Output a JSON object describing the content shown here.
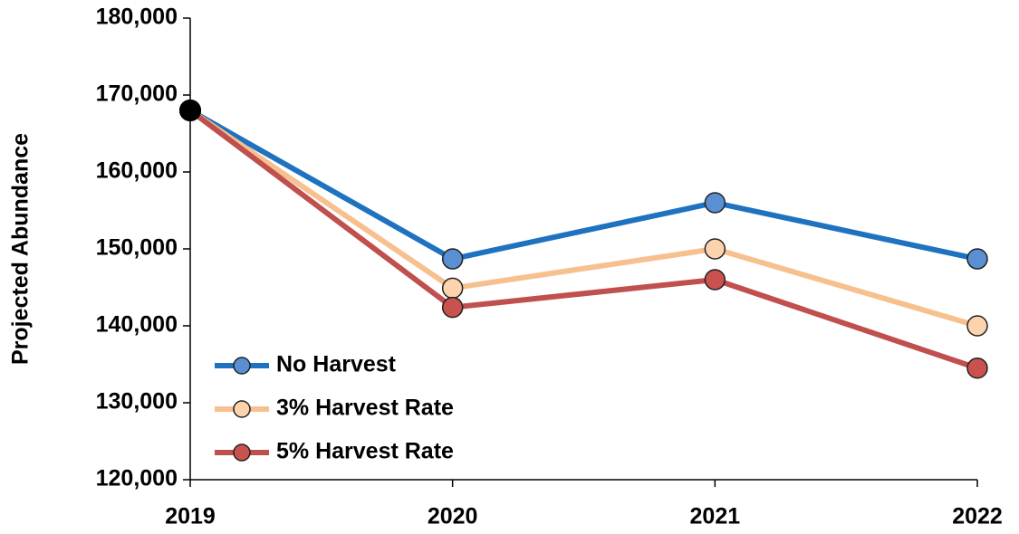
{
  "chart_data": {
    "type": "line",
    "y_label": "Projected Abundance",
    "x": [
      2019,
      2020,
      2021,
      2022
    ],
    "xlim": [
      2019,
      2022
    ],
    "xticks": [
      2019,
      2020,
      2021,
      2022
    ],
    "ylim": [
      120000,
      180000
    ],
    "yticks": [
      {
        "value": 120000,
        "label": "120,000"
      },
      {
        "value": 130000,
        "label": "130,000"
      },
      {
        "value": 140000,
        "label": "140,000"
      },
      {
        "value": 150000,
        "label": "150,000"
      },
      {
        "value": 160000,
        "label": "160,000"
      },
      {
        "value": 170000,
        "label": "170,000"
      },
      {
        "value": 180000,
        "label": "180,000"
      }
    ],
    "start_marker_color": "#000000",
    "legend": "lower left",
    "series": [
      {
        "name": "No Harvest",
        "color": "#1f72c0",
        "marker_color": "#5b8fd3",
        "values": [
          168000,
          148700,
          156000,
          148700
        ]
      },
      {
        "name": "3% Harvest Rate",
        "color": "#f7c08f",
        "marker_color": "#fcd3ac",
        "values": [
          168000,
          144900,
          150000,
          140000
        ]
      },
      {
        "name": "5% Harvest Rate",
        "color": "#c0504d",
        "marker_color": "#c9514e",
        "values": [
          168000,
          142400,
          146000,
          134500
        ]
      }
    ]
  }
}
